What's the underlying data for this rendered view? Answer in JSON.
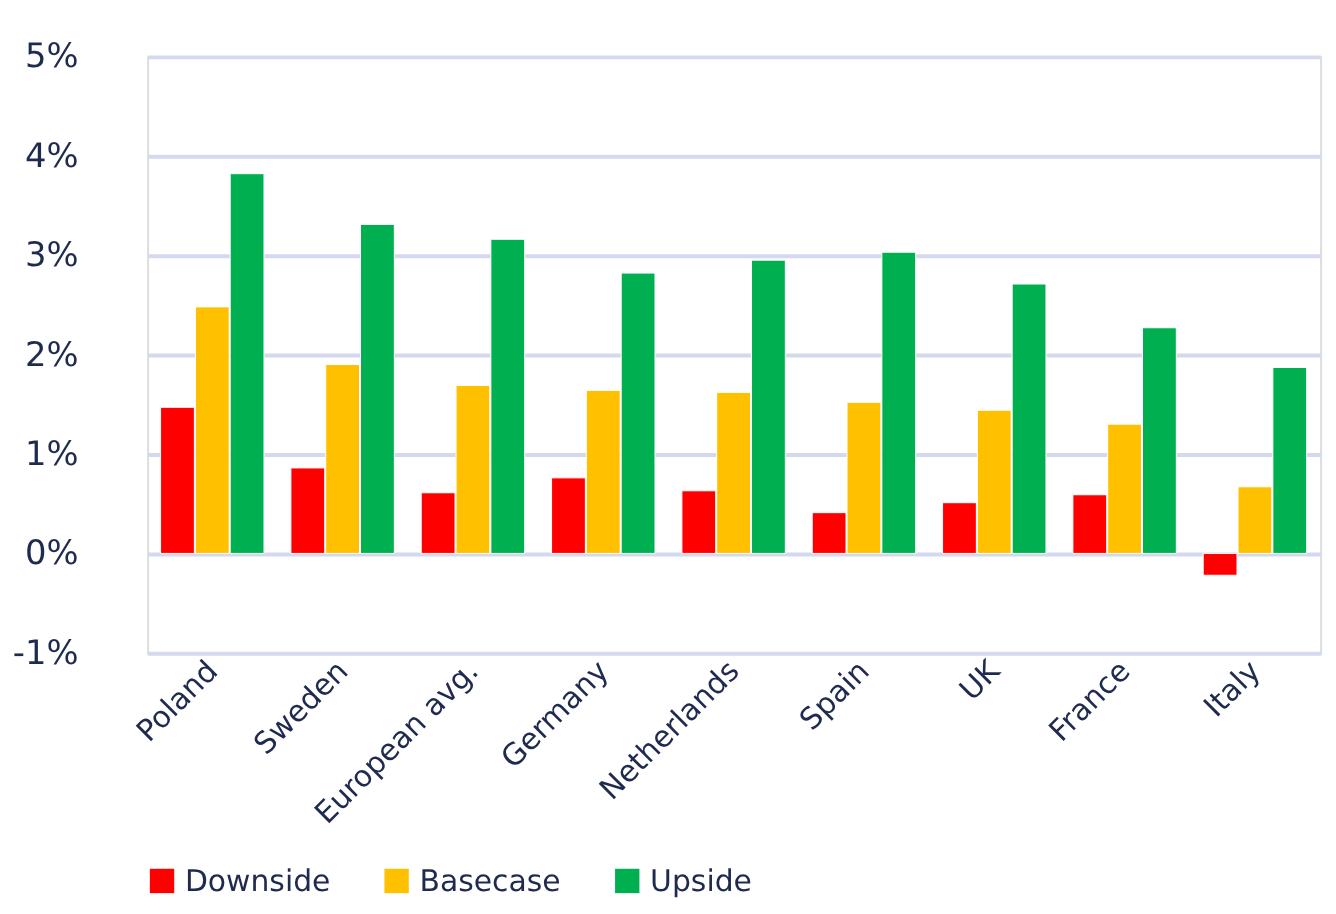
{
  "chart_data": {
    "type": "bar",
    "categories": [
      "Poland",
      "Sweden",
      "European avg.",
      "Germany",
      "Netherlands",
      "Spain",
      "UK",
      "France",
      "Italy"
    ],
    "series": [
      {
        "name": "Downside",
        "color": "#ff0000",
        "values": [
          1.47,
          0.86,
          0.61,
          0.76,
          0.63,
          0.41,
          0.51,
          0.59,
          -0.22
        ]
      },
      {
        "name": "Basecase",
        "color": "#ffc000",
        "values": [
          2.48,
          1.9,
          1.69,
          1.64,
          1.62,
          1.52,
          1.44,
          1.3,
          0.67
        ]
      },
      {
        "name": "Upside",
        "color": "#00b050",
        "values": [
          3.82,
          3.31,
          3.16,
          2.82,
          2.95,
          3.03,
          2.71,
          2.27,
          1.87
        ]
      }
    ],
    "ylim": [
      -1,
      5
    ],
    "yticks": [
      {
        "value": -1,
        "label": "-1%"
      },
      {
        "value": 0,
        "label": "0%"
      },
      {
        "value": 1,
        "label": "1%"
      },
      {
        "value": 2,
        "label": "2%"
      },
      {
        "value": 3,
        "label": "3%"
      },
      {
        "value": 4,
        "label": "4%"
      },
      {
        "value": 5,
        "label": "5%"
      }
    ],
    "grid": "y",
    "legend": "bottom"
  }
}
